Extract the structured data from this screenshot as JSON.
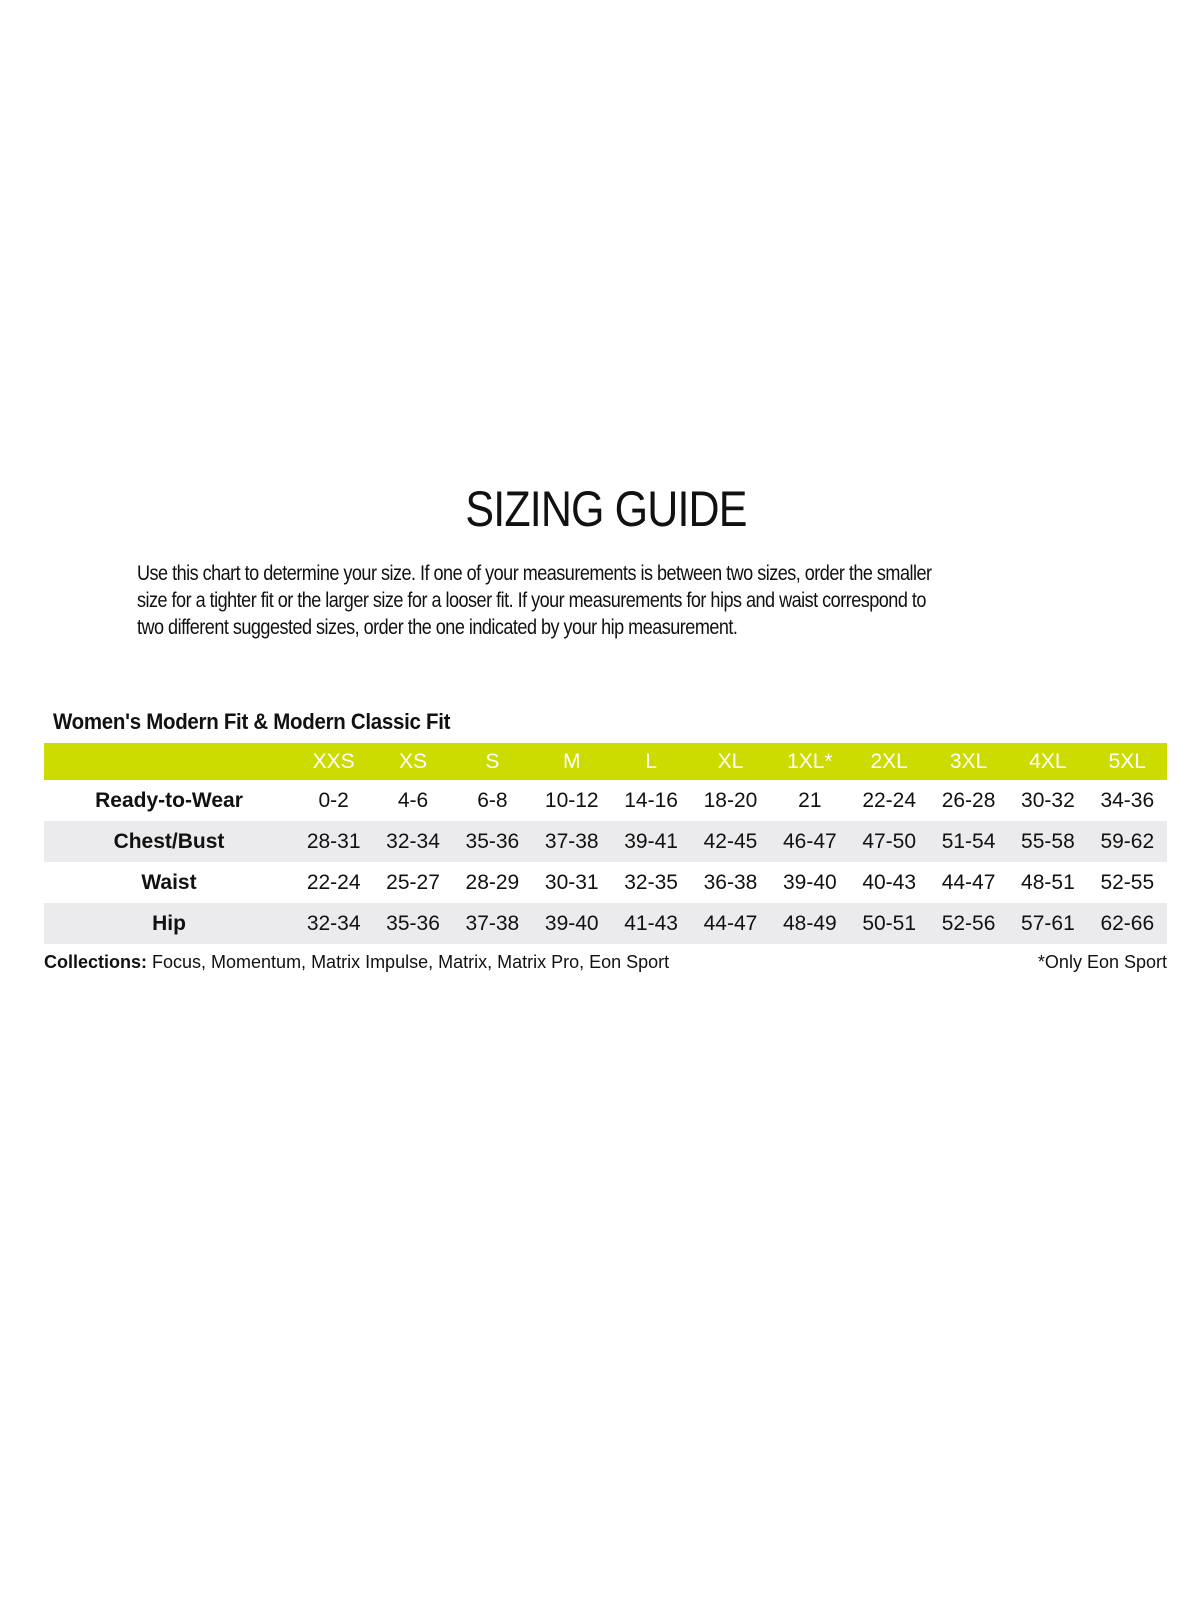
{
  "title": "SIZING GUIDE",
  "intro_lines": [
    "Use this chart to determine your size. If one of your measurements is between two sizes, order the smaller",
    "size for a tighter fit or the larger size for a looser fit. If your measurements for hips and waist correspond to",
    "two different suggested sizes, order the one indicated by your hip measurement."
  ],
  "table": {
    "title": "Women's Modern Fit & Modern Classic Fit",
    "header_color": "#cddc00",
    "alt_row_color": "#ebebed",
    "sizes": [
      "XXS",
      "XS",
      "S",
      "M",
      "L",
      "XL",
      "1XL*",
      "2XL",
      "3XL",
      "4XL",
      "5XL"
    ],
    "rows": [
      {
        "label": "Ready-to-Wear",
        "values": [
          "0-2",
          "4-6",
          "6-8",
          "10-12",
          "14-16",
          "18-20",
          "21",
          "22-24",
          "26-28",
          "30-32",
          "34-36"
        ]
      },
      {
        "label": "Chest/Bust",
        "values": [
          "28-31",
          "32-34",
          "35-36",
          "37-38",
          "39-41",
          "42-45",
          "46-47",
          "47-50",
          "51-54",
          "55-58",
          "59-62"
        ]
      },
      {
        "label": "Waist",
        "values": [
          "22-24",
          "25-27",
          "28-29",
          "30-31",
          "32-35",
          "36-38",
          "39-40",
          "40-43",
          "44-47",
          "48-51",
          "52-55"
        ]
      },
      {
        "label": "Hip",
        "values": [
          "32-34",
          "35-36",
          "37-38",
          "39-40",
          "41-43",
          "44-47",
          "48-49",
          "50-51",
          "52-56",
          "57-61",
          "62-66"
        ]
      }
    ]
  },
  "footer": {
    "collections_label": "Collections:",
    "collections_value": " Focus, Momentum, Matrix Impulse, Matrix, Matrix Pro, Eon Sport",
    "note": "*Only Eon Sport"
  }
}
